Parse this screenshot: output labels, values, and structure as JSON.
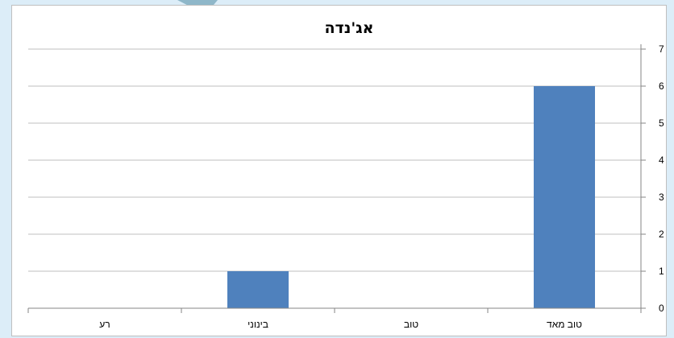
{
  "chart_data": {
    "type": "bar",
    "title": "אג'נדה",
    "categories": [
      "טוב מאד",
      "טוב",
      "בינוני",
      "רע"
    ],
    "values": [
      6,
      0,
      1,
      0
    ],
    "ylim": [
      0,
      7
    ],
    "yticks": [
      0,
      1,
      2,
      3,
      4,
      5,
      6,
      7
    ],
    "y_axis_side": "right",
    "category_order": "right-to-left",
    "grid": true,
    "bar_color": "#4f81bd",
    "grid_color": "#bfbfbf"
  }
}
